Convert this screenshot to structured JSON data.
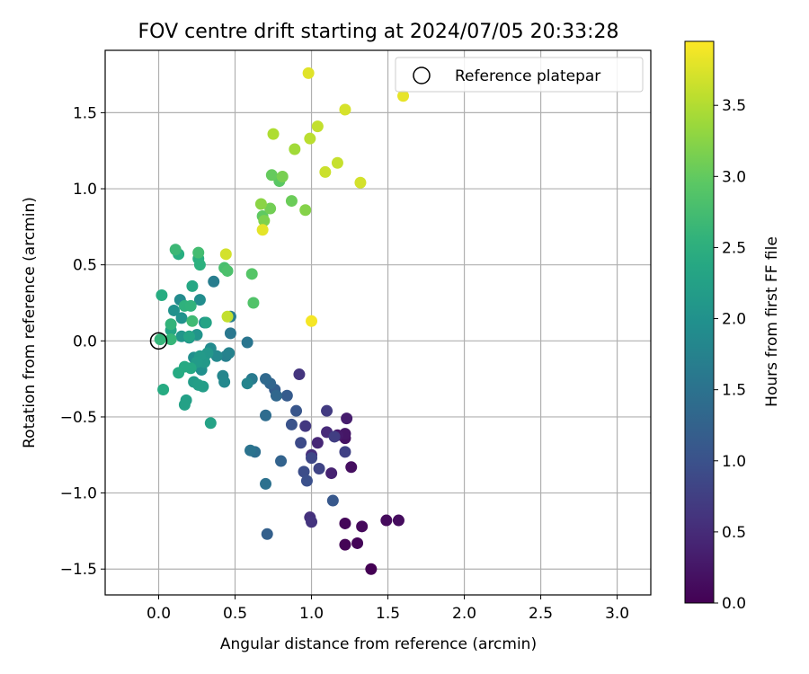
{
  "chart_data": {
    "type": "scatter",
    "title": "FOV centre drift starting at 2024/07/05 20:33:28",
    "xlabel": "Angular distance from reference (arcmin)",
    "ylabel": "Rotation from reference (arcmin)",
    "xlim": [
      -0.35,
      3.22
    ],
    "ylim": [
      -1.67,
      1.91
    ],
    "xticks": [
      0.0,
      0.5,
      1.0,
      1.5,
      2.0,
      2.5,
      3.0
    ],
    "xtick_labels": [
      "0.0",
      "0.5",
      "1.0",
      "1.5",
      "2.0",
      "2.5",
      "3.0"
    ],
    "yticks": [
      -1.5,
      -1.0,
      -0.5,
      0.0,
      0.5,
      1.0,
      1.5
    ],
    "ytick_labels": [
      "−1.5",
      "−1.0",
      "−0.5",
      "0.0",
      "0.5",
      "1.0",
      "1.5"
    ],
    "grid": true,
    "legend": {
      "position": "upper-right",
      "entries": [
        "Reference platepar"
      ]
    },
    "reference_point": {
      "x": 0.0,
      "y": 0.0
    },
    "colorbar": {
      "label": "Hours from first FF file",
      "colormap": "viridis",
      "range": [
        0.0,
        3.95
      ],
      "ticks": [
        0.0,
        0.5,
        1.0,
        1.5,
        2.0,
        2.5,
        3.0,
        3.5
      ],
      "tick_labels": [
        "0.0",
        "0.5",
        "1.0",
        "1.5",
        "2.0",
        "2.5",
        "3.0",
        "3.5"
      ]
    },
    "points": [
      {
        "x": 1.39,
        "y": -1.5,
        "h": 0.0
      },
      {
        "x": 1.22,
        "y": -1.34,
        "h": 0.03
      },
      {
        "x": 1.3,
        "y": -1.33,
        "h": 0.05
      },
      {
        "x": 1.22,
        "y": -1.2,
        "h": 0.07
      },
      {
        "x": 1.33,
        "y": -1.22,
        "h": 0.09
      },
      {
        "x": 1.49,
        "y": -1.18,
        "h": 0.11
      },
      {
        "x": 1.57,
        "y": -1.18,
        "h": 0.13
      },
      {
        "x": 1.26,
        "y": -0.83,
        "h": 0.16
      },
      {
        "x": 1.22,
        "y": -0.64,
        "h": 0.2
      },
      {
        "x": 1.22,
        "y": -0.61,
        "h": 0.24
      },
      {
        "x": 1.17,
        "y": -0.62,
        "h": 0.28
      },
      {
        "x": 1.23,
        "y": -0.51,
        "h": 0.32
      },
      {
        "x": 1.13,
        "y": -0.87,
        "h": 0.38
      },
      {
        "x": 1.04,
        "y": -0.67,
        "h": 0.44
      },
      {
        "x": 1.1,
        "y": -0.6,
        "h": 0.48
      },
      {
        "x": 1.0,
        "y": -0.75,
        "h": 0.52
      },
      {
        "x": 0.99,
        "y": -1.16,
        "h": 0.56
      },
      {
        "x": 1.0,
        "y": -1.19,
        "h": 0.6
      },
      {
        "x": 0.92,
        "y": -0.22,
        "h": 0.62
      },
      {
        "x": 0.96,
        "y": -0.56,
        "h": 0.66
      },
      {
        "x": 1.1,
        "y": -0.46,
        "h": 0.7
      },
      {
        "x": 1.15,
        "y": -0.63,
        "h": 0.74
      },
      {
        "x": 1.22,
        "y": -0.73,
        "h": 0.78
      },
      {
        "x": 1.05,
        "y": -0.84,
        "h": 0.82
      },
      {
        "x": 1.0,
        "y": -0.77,
        "h": 0.86
      },
      {
        "x": 0.93,
        "y": -0.67,
        "h": 0.9
      },
      {
        "x": 0.95,
        "y": -0.86,
        "h": 0.94
      },
      {
        "x": 0.97,
        "y": -0.92,
        "h": 0.98
      },
      {
        "x": 0.87,
        "y": -0.55,
        "h": 1.02
      },
      {
        "x": 0.9,
        "y": -0.46,
        "h": 1.06
      },
      {
        "x": 1.14,
        "y": -1.05,
        "h": 1.1
      },
      {
        "x": 0.84,
        "y": -0.36,
        "h": 1.14
      },
      {
        "x": 0.76,
        "y": -0.32,
        "h": 1.18
      },
      {
        "x": 0.71,
        "y": -1.27,
        "h": 1.22
      },
      {
        "x": 0.8,
        "y": -0.79,
        "h": 1.26
      },
      {
        "x": 0.73,
        "y": -0.28,
        "h": 1.3
      },
      {
        "x": 0.77,
        "y": -0.36,
        "h": 1.33
      },
      {
        "x": 0.7,
        "y": -0.25,
        "h": 1.36
      },
      {
        "x": 0.7,
        "y": -0.49,
        "h": 1.4
      },
      {
        "x": 0.63,
        "y": -0.73,
        "h": 1.44
      },
      {
        "x": 0.7,
        "y": -0.94,
        "h": 1.48
      },
      {
        "x": 0.6,
        "y": -0.72,
        "h": 1.52
      },
      {
        "x": 0.58,
        "y": -0.01,
        "h": 1.55
      },
      {
        "x": 0.47,
        "y": 0.05,
        "h": 1.58
      },
      {
        "x": 0.61,
        "y": -0.25,
        "h": 1.62
      },
      {
        "x": 0.47,
        "y": 0.16,
        "h": 1.65
      },
      {
        "x": 0.36,
        "y": 0.39,
        "h": 1.68
      },
      {
        "x": 0.44,
        "y": -0.1,
        "h": 1.72
      },
      {
        "x": 0.46,
        "y": -0.08,
        "h": 1.75
      },
      {
        "x": 0.58,
        "y": -0.28,
        "h": 1.78
      },
      {
        "x": 0.42,
        "y": -0.23,
        "h": 1.81
      },
      {
        "x": 0.43,
        "y": -0.27,
        "h": 1.84
      },
      {
        "x": 0.38,
        "y": -0.1,
        "h": 1.86
      },
      {
        "x": 0.34,
        "y": -0.05,
        "h": 1.88
      },
      {
        "x": 0.14,
        "y": 0.27,
        "h": 1.9
      },
      {
        "x": 0.27,
        "y": 0.27,
        "h": 1.92
      },
      {
        "x": 0.3,
        "y": 0.12,
        "h": 1.94
      },
      {
        "x": 0.23,
        "y": -0.11,
        "h": 1.96
      },
      {
        "x": 0.28,
        "y": -0.19,
        "h": 1.98
      },
      {
        "x": 0.1,
        "y": 0.2,
        "h": 2.0
      },
      {
        "x": 0.15,
        "y": 0.15,
        "h": 2.02
      },
      {
        "x": 0.25,
        "y": 0.04,
        "h": 2.04
      },
      {
        "x": 0.2,
        "y": 0.02,
        "h": 2.06
      },
      {
        "x": 0.15,
        "y": 0.03,
        "h": 2.08
      },
      {
        "x": 0.32,
        "y": -0.08,
        "h": 2.1
      },
      {
        "x": 0.3,
        "y": -0.14,
        "h": 2.12
      },
      {
        "x": 0.27,
        "y": -0.1,
        "h": 2.14
      },
      {
        "x": 0.25,
        "y": -0.14,
        "h": 2.16
      },
      {
        "x": 0.23,
        "y": -0.27,
        "h": 2.18
      },
      {
        "x": 0.29,
        "y": -0.3,
        "h": 2.2
      },
      {
        "x": 0.26,
        "y": -0.29,
        "h": 2.22
      },
      {
        "x": 0.18,
        "y": -0.39,
        "h": 2.24
      },
      {
        "x": 0.17,
        "y": -0.42,
        "h": 2.26
      },
      {
        "x": 0.34,
        "y": -0.54,
        "h": 2.28
      },
      {
        "x": 0.31,
        "y": 0.12,
        "h": 2.3
      },
      {
        "x": 0.2,
        "y": 0.03,
        "h": 2.32
      },
      {
        "x": 0.08,
        "y": 0.07,
        "h": 2.34
      },
      {
        "x": 0.22,
        "y": 0.36,
        "h": 2.36
      },
      {
        "x": 0.21,
        "y": -0.18,
        "h": 2.38
      },
      {
        "x": 0.17,
        "y": -0.17,
        "h": 2.4
      },
      {
        "x": 0.13,
        "y": -0.21,
        "h": 2.42
      },
      {
        "x": 0.03,
        "y": -0.32,
        "h": 2.44
      },
      {
        "x": 0.02,
        "y": 0.3,
        "h": 2.46
      },
      {
        "x": 0.13,
        "y": 0.57,
        "h": 2.48
      },
      {
        "x": 0.26,
        "y": 0.54,
        "h": 2.5
      },
      {
        "x": 0.27,
        "y": 0.5,
        "h": 2.52
      },
      {
        "x": 0.17,
        "y": 0.23,
        "h": 2.54
      },
      {
        "x": 0.21,
        "y": 0.23,
        "h": 2.56
      },
      {
        "x": 0.08,
        "y": 0.11,
        "h": 2.58
      },
      {
        "x": 0.01,
        "y": 0.01,
        "h": 2.6
      },
      {
        "x": 0.08,
        "y": 0.01,
        "h": 2.62
      },
      {
        "x": 0.11,
        "y": 0.6,
        "h": 2.66
      },
      {
        "x": 0.22,
        "y": 0.13,
        "h": 2.7
      },
      {
        "x": 0.26,
        "y": 0.58,
        "h": 2.74
      },
      {
        "x": 0.43,
        "y": 0.48,
        "h": 2.78
      },
      {
        "x": 0.45,
        "y": 0.46,
        "h": 2.82
      },
      {
        "x": 0.62,
        "y": 0.25,
        "h": 2.86
      },
      {
        "x": 0.61,
        "y": 0.44,
        "h": 2.9
      },
      {
        "x": 0.79,
        "y": 1.05,
        "h": 2.94
      },
      {
        "x": 0.68,
        "y": 0.82,
        "h": 2.98
      },
      {
        "x": 0.74,
        "y": 1.09,
        "h": 3.02
      },
      {
        "x": 0.87,
        "y": 0.92,
        "h": 3.06
      },
      {
        "x": 0.73,
        "y": 0.87,
        "h": 3.1
      },
      {
        "x": 0.81,
        "y": 1.08,
        "h": 3.14
      },
      {
        "x": 0.69,
        "y": 0.79,
        "h": 3.18
      },
      {
        "x": 0.96,
        "y": 0.86,
        "h": 3.22
      },
      {
        "x": 0.67,
        "y": 0.9,
        "h": 3.26
      },
      {
        "x": 0.89,
        "y": 1.26,
        "h": 3.4
      },
      {
        "x": 0.75,
        "y": 1.36,
        "h": 3.48
      },
      {
        "x": 0.99,
        "y": 1.33,
        "h": 3.55
      },
      {
        "x": 1.04,
        "y": 1.41,
        "h": 3.6
      },
      {
        "x": 1.17,
        "y": 1.17,
        "h": 3.62
      },
      {
        "x": 1.09,
        "y": 1.11,
        "h": 3.65
      },
      {
        "x": 1.32,
        "y": 1.04,
        "h": 3.7
      },
      {
        "x": 1.22,
        "y": 1.52,
        "h": 3.72
      },
      {
        "x": 0.98,
        "y": 1.76,
        "h": 3.78
      },
      {
        "x": 1.6,
        "y": 1.61,
        "h": 3.82
      },
      {
        "x": 0.44,
        "y": 0.57,
        "h": 3.7
      },
      {
        "x": 0.45,
        "y": 0.16,
        "h": 3.6
      },
      {
        "x": 0.68,
        "y": 0.73,
        "h": 3.8
      },
      {
        "x": 1.0,
        "y": 0.13,
        "h": 3.9
      }
    ]
  }
}
